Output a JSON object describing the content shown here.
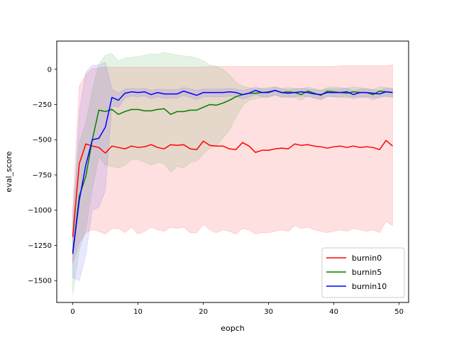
{
  "chart_data": {
    "type": "line",
    "title": "",
    "xlabel": "eopch",
    "ylabel": "eval_score",
    "xlim": [
      -2.45,
      51.45
    ],
    "ylim": [
      -1655,
      200
    ],
    "xticks": [
      0,
      10,
      20,
      30,
      40,
      50
    ],
    "yticks": [
      0,
      -250,
      -500,
      -750,
      -1000,
      -1250,
      -1500
    ],
    "legend_position": "lower-right",
    "grid": false,
    "x": [
      0,
      1,
      2,
      3,
      4,
      5,
      6,
      7,
      8,
      9,
      10,
      11,
      12,
      13,
      14,
      15,
      16,
      17,
      18,
      19,
      20,
      21,
      22,
      23,
      24,
      25,
      26,
      27,
      28,
      29,
      30,
      31,
      32,
      33,
      34,
      35,
      36,
      37,
      38,
      39,
      40,
      41,
      42,
      43,
      44,
      45,
      46,
      47,
      48,
      49
    ],
    "series": [
      {
        "name": "burnin0",
        "color": "#ff0000",
        "fill_color": "#ff0000",
        "mean": [
          -1190,
          -670,
          -530,
          -545,
          -555,
          -595,
          -545,
          -555,
          -565,
          -545,
          -555,
          -550,
          -535,
          -555,
          -565,
          -535,
          -540,
          -535,
          -565,
          -570,
          -510,
          -540,
          -545,
          -545,
          -565,
          -570,
          -520,
          -545,
          -590,
          -575,
          -575,
          -565,
          -560,
          -565,
          -530,
          -540,
          -535,
          -545,
          -550,
          -560,
          -550,
          -545,
          -555,
          -545,
          -555,
          -550,
          -555,
          -570,
          -505,
          -545
        ],
        "upper": [
          -1000,
          -120,
          -40,
          5,
          10,
          15,
          15,
          15,
          15,
          15,
          15,
          15,
          15,
          15,
          15,
          15,
          15,
          15,
          15,
          15,
          15,
          20,
          20,
          20,
          20,
          20,
          20,
          20,
          20,
          20,
          20,
          20,
          20,
          20,
          20,
          20,
          20,
          20,
          20,
          20,
          20,
          25,
          25,
          25,
          25,
          25,
          25,
          25,
          25,
          30
        ],
        "lower": [
          -1380,
          -1230,
          -1160,
          -1140,
          -1150,
          -1170,
          -1130,
          -1130,
          -1160,
          -1120,
          -1170,
          -1150,
          -1120,
          -1140,
          -1150,
          -1120,
          -1130,
          -1120,
          -1160,
          -1160,
          -1100,
          -1140,
          -1160,
          -1140,
          -1150,
          -1170,
          -1130,
          -1140,
          -1170,
          -1160,
          -1160,
          -1150,
          -1140,
          -1150,
          -1110,
          -1130,
          -1120,
          -1140,
          -1150,
          -1160,
          -1150,
          -1140,
          -1150,
          -1130,
          -1140,
          -1150,
          -1140,
          -1160,
          -1080,
          -1110
        ]
      },
      {
        "name": "burnin5",
        "color": "#008000",
        "fill_color": "#2ca02c",
        "mean": [
          -1300,
          -900,
          -760,
          -500,
          -290,
          -300,
          -285,
          -320,
          -300,
          -285,
          -285,
          -295,
          -295,
          -285,
          -280,
          -320,
          -300,
          -300,
          -290,
          -290,
          -270,
          -250,
          -255,
          -240,
          -220,
          -195,
          -180,
          -170,
          -170,
          -165,
          -160,
          -150,
          -165,
          -160,
          -165,
          -180,
          -155,
          -170,
          -185,
          -155,
          -160,
          -165,
          -170,
          -160,
          -165,
          -165,
          -180,
          -155,
          -160,
          -165
        ],
        "upper": [
          -1000,
          -520,
          -380,
          -150,
          40,
          100,
          110,
          60,
          80,
          85,
          90,
          100,
          110,
          105,
          120,
          110,
          100,
          95,
          90,
          80,
          60,
          30,
          20,
          0,
          -40,
          -90,
          -120,
          -130,
          -140,
          -135,
          -130,
          -125,
          -135,
          -130,
          -135,
          -140,
          -125,
          -135,
          -150,
          -130,
          -125,
          -130,
          -135,
          -125,
          -130,
          -135,
          -145,
          -125,
          -130,
          -135
        ],
        "lower": [
          -1600,
          -1280,
          -1140,
          -850,
          -620,
          -680,
          -690,
          -700,
          -680,
          -640,
          -640,
          -660,
          -680,
          -660,
          -670,
          -730,
          -690,
          -700,
          -660,
          -650,
          -600,
          -560,
          -540,
          -490,
          -430,
          -340,
          -260,
          -220,
          -210,
          -200,
          -200,
          -185,
          -200,
          -195,
          -200,
          -220,
          -190,
          -205,
          -220,
          -190,
          -195,
          -200,
          -205,
          -195,
          -200,
          -200,
          -220,
          -190,
          -195,
          -200
        ]
      },
      {
        "name": "burnin10",
        "color": "#0000ff",
        "fill_color": "#4040ff",
        "mean": [
          -1310,
          -930,
          -680,
          -500,
          -490,
          -410,
          -200,
          -220,
          -170,
          -160,
          -165,
          -160,
          -180,
          -165,
          -175,
          -175,
          -175,
          -155,
          -170,
          -185,
          -165,
          -165,
          -165,
          -165,
          -160,
          -165,
          -180,
          -170,
          -150,
          -165,
          -165,
          -150,
          -165,
          -170,
          -165,
          -160,
          -165,
          -175,
          -180,
          -165,
          -165,
          -165,
          -160,
          -180,
          -165,
          -165,
          -170,
          -175,
          -160,
          -165
        ],
        "upper": [
          -1150,
          -300,
          -20,
          30,
          30,
          50,
          -140,
          -170,
          -140,
          -135,
          -140,
          -135,
          -150,
          -140,
          -145,
          -145,
          -145,
          -130,
          -140,
          -150,
          -140,
          -140,
          -140,
          -140,
          -135,
          -140,
          -150,
          -140,
          -125,
          -140,
          -140,
          -125,
          -140,
          -145,
          -140,
          -135,
          -140,
          -145,
          -150,
          -140,
          -140,
          -140,
          -135,
          -150,
          -140,
          -140,
          -145,
          -150,
          -135,
          -140
        ],
        "lower": [
          -1480,
          -1500,
          -1320,
          -1000,
          -980,
          -860,
          -260,
          -270,
          -205,
          -190,
          -195,
          -190,
          -210,
          -195,
          -205,
          -205,
          -205,
          -185,
          -200,
          -215,
          -195,
          -195,
          -195,
          -195,
          -190,
          -195,
          -210,
          -200,
          -180,
          -195,
          -195,
          -180,
          -195,
          -200,
          -195,
          -190,
          -195,
          -205,
          -210,
          -195,
          -195,
          -195,
          -190,
          -210,
          -195,
          -195,
          -200,
          -205,
          -190,
          -195
        ]
      }
    ]
  }
}
